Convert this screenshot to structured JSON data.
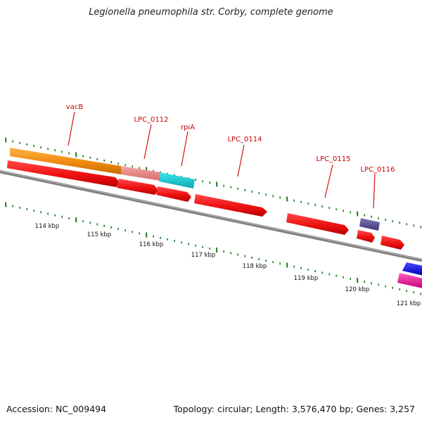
{
  "title": "Legionella pneumophila str. Corby, complete genome",
  "footer": {
    "accession": "Accession: NC_009494",
    "summary": "Topology: circular; Length: 3,576,470 bp; Genes: 3,257"
  },
  "colors": {
    "backbone": "#7f7f7f",
    "gene": "#ee1111",
    "label": "#cc0000",
    "tick": "#1f7a1f"
  },
  "genes": [
    {
      "name": "vacB"
    },
    {
      "name": "LPC_0112"
    },
    {
      "name": "rpiA"
    },
    {
      "name": "LPC_0114"
    },
    {
      "name": "LPC_0115"
    },
    {
      "name": "LPC_0116"
    }
  ],
  "scale_labels": [
    "114 kbp",
    "115 kbp",
    "116 kbp",
    "117 kbp",
    "118 kbp",
    "119 kbp",
    "120 kbp",
    "121 kbp"
  ]
}
